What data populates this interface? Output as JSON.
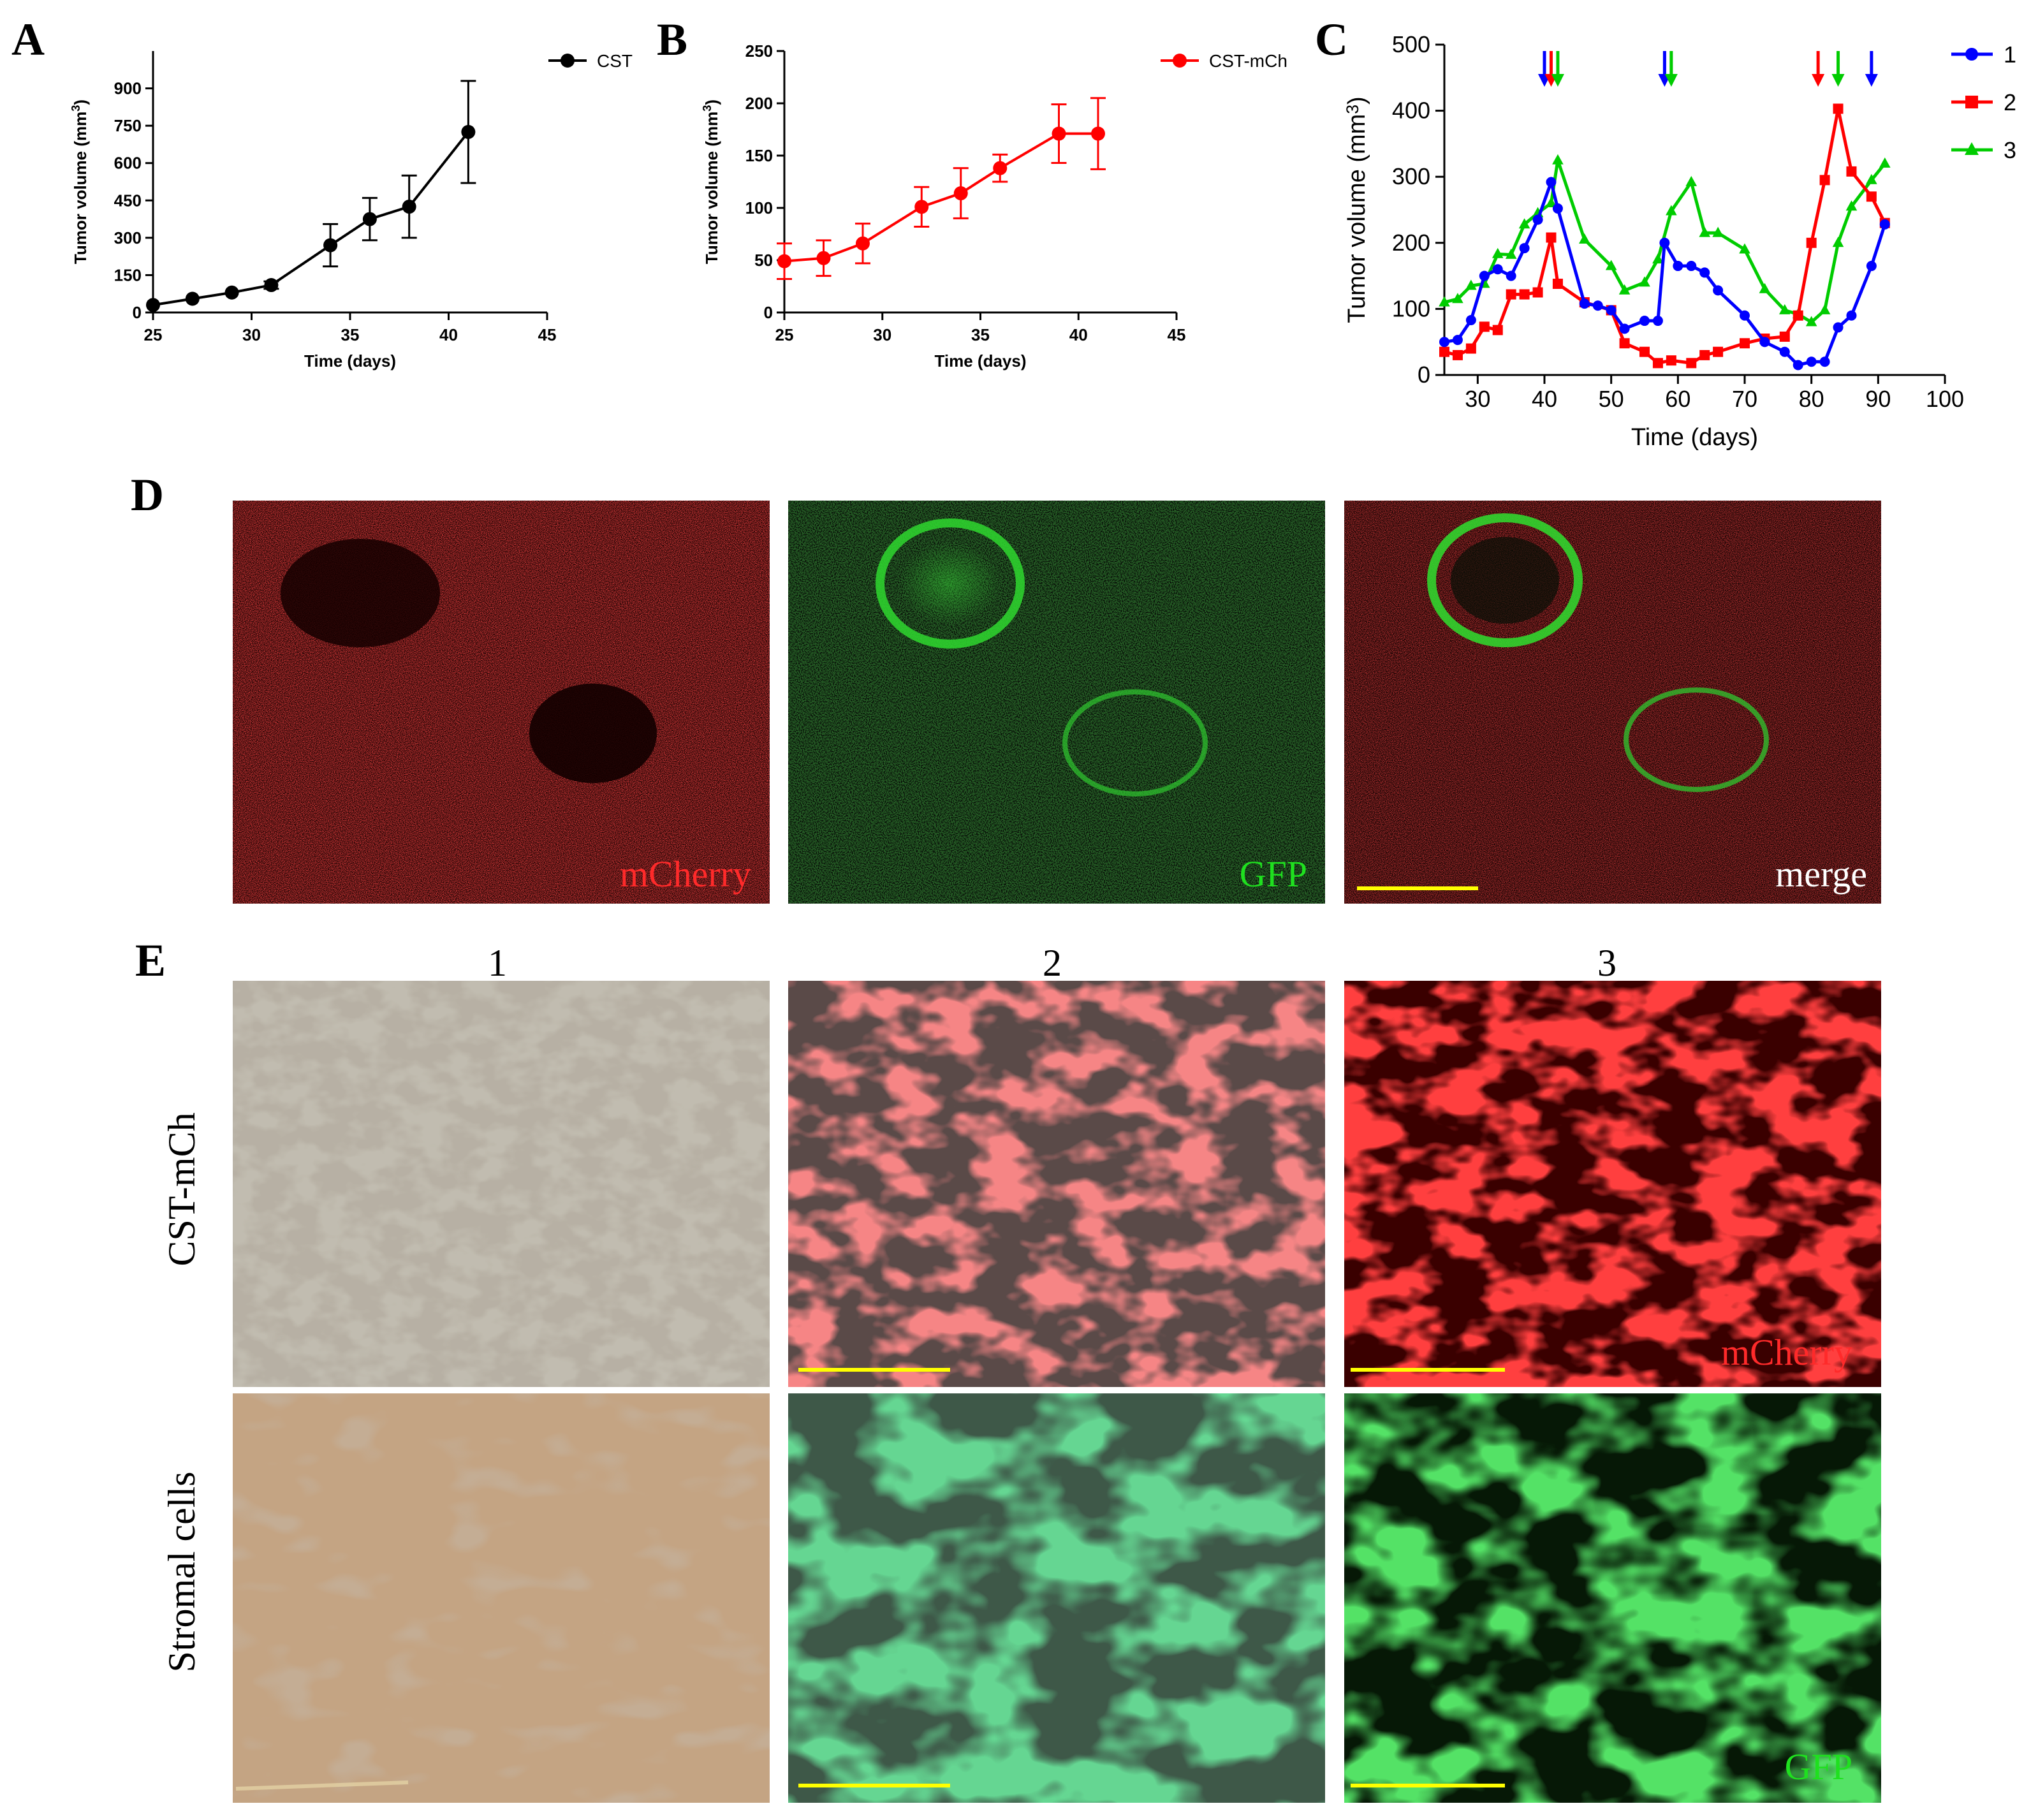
{
  "panels": {
    "A": "A",
    "B": "B",
    "C": "C",
    "D": "D",
    "E": "E"
  },
  "chart_data": [
    {
      "id": "A",
      "type": "line",
      "xlabel": "Time (days)",
      "ylabel": "Tumor volume (mm³)",
      "xlim": [
        25,
        45
      ],
      "ylim": [
        0,
        1050
      ],
      "xticks": [
        25,
        30,
        35,
        40,
        45
      ],
      "yticks": [
        0,
        150,
        300,
        450,
        600,
        750,
        900
      ],
      "color": "#000000",
      "series": [
        {
          "name": "CST",
          "x": [
            25,
            27,
            29,
            31,
            34,
            36,
            38,
            41
          ],
          "y": [
            30,
            55,
            80,
            110,
            270,
            375,
            425,
            725
          ],
          "err": [
            0,
            0,
            0,
            15,
            85,
            85,
            125,
            205
          ]
        }
      ]
    },
    {
      "id": "B",
      "type": "line",
      "xlabel": "Time (days)",
      "ylabel": "Tumor volume (mm³)",
      "xlim": [
        25,
        45
      ],
      "ylim": [
        0,
        250
      ],
      "xticks": [
        25,
        30,
        35,
        40,
        45
      ],
      "yticks": [
        0,
        50,
        100,
        150,
        200,
        250
      ],
      "color": "#ff0000",
      "series": [
        {
          "name": "CST-mCh",
          "x": [
            25,
            27,
            29,
            32,
            34,
            36,
            39,
            41
          ],
          "y": [
            49,
            52,
            66,
            101,
            114,
            138,
            171,
            171
          ],
          "err": [
            17,
            17,
            19,
            19,
            24,
            13,
            28,
            34
          ]
        }
      ]
    },
    {
      "id": "C",
      "type": "line",
      "xlabel": "Time (days)",
      "ylabel": "Tumor volume (mm³)",
      "xlim": [
        25,
        100
      ],
      "ylim": [
        0,
        500
      ],
      "xticks": [
        30,
        40,
        50,
        60,
        70,
        80,
        90,
        100
      ],
      "yticks": [
        0,
        100,
        200,
        300,
        400,
        500
      ],
      "series": [
        {
          "name": "1",
          "color": "#0000ff",
          "marker": "circle",
          "x": [
            25,
            27,
            29,
            31,
            33,
            35,
            37,
            39,
            41,
            42,
            46,
            48,
            50,
            52,
            55,
            57,
            58,
            60,
            62,
            64,
            66,
            70,
            73,
            76,
            78,
            80,
            82,
            84,
            86,
            89,
            91
          ],
          "y": [
            50,
            53,
            83,
            150,
            160,
            150,
            192,
            235,
            292,
            252,
            108,
            105,
            98,
            70,
            82,
            82,
            200,
            165,
            165,
            155,
            128,
            90,
            50,
            35,
            15,
            20,
            20,
            72,
            90,
            165,
            228
          ]
        },
        {
          "name": "2",
          "color": "#ff0000",
          "marker": "square",
          "x": [
            25,
            27,
            29,
            31,
            33,
            35,
            37,
            39,
            41,
            42,
            46,
            50,
            52,
            55,
            57,
            59,
            62,
            64,
            66,
            70,
            73,
            76,
            78,
            80,
            82,
            84,
            86,
            89,
            91
          ],
          "y": [
            35,
            30,
            40,
            73,
            68,
            122,
            122,
            125,
            208,
            138,
            110,
            98,
            48,
            35,
            18,
            22,
            18,
            30,
            35,
            48,
            55,
            58,
            90,
            200,
            295,
            403,
            308,
            270,
            230
          ]
        },
        {
          "name": "3",
          "color": "#00cc00",
          "marker": "triangle",
          "x": [
            25,
            27,
            29,
            31,
            33,
            35,
            37,
            39,
            41,
            42,
            46,
            50,
            52,
            55,
            57,
            59,
            62,
            64,
            66,
            70,
            73,
            76,
            78,
            80,
            82,
            84,
            86,
            89,
            91
          ],
          "y": [
            110,
            115,
            135,
            138,
            183,
            182,
            228,
            245,
            260,
            325,
            205,
            165,
            128,
            140,
            175,
            248,
            292,
            215,
            215,
            190,
            130,
            98,
            92,
            80,
            98,
            200,
            255,
            295,
            320
          ]
        }
      ],
      "arrows": [
        {
          "x": 40,
          "series": "1"
        },
        {
          "x": 41,
          "series": "2"
        },
        {
          "x": 42,
          "series": "3"
        },
        {
          "x": 58,
          "series": "1"
        },
        {
          "x": 59,
          "series": "3"
        },
        {
          "x": 81,
          "series": "2"
        },
        {
          "x": 84,
          "series": "3"
        },
        {
          "x": 89,
          "series": "1"
        }
      ]
    }
  ],
  "colors": {
    "blue": "#0000ff",
    "red": "#ff0000",
    "green": "#00cc00",
    "scalebar": "#ffff00"
  },
  "panelD": {
    "labels": [
      "mCherry",
      "GFP",
      "merge"
    ],
    "label_colors": [
      "#ff2a2a",
      "#1fe01f",
      "#ffffff"
    ]
  },
  "panelE": {
    "columns": [
      "1",
      "2",
      "3"
    ],
    "rows": [
      "CST-mCh",
      "Stromal cells"
    ],
    "labels": {
      "mcherry": "mCherry",
      "gfp": "GFP"
    },
    "label_colors": {
      "mcherry": "#ff2a2a",
      "gfp": "#1fe01f"
    }
  }
}
